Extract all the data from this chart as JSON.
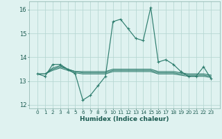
{
  "xlabel": "Humidex (Indice chaleur)",
  "x": [
    0,
    1,
    2,
    3,
    4,
    5,
    6,
    7,
    8,
    9,
    10,
    11,
    12,
    13,
    14,
    15,
    16,
    17,
    18,
    19,
    20,
    21,
    22,
    23
  ],
  "line1": [
    13.3,
    13.2,
    13.7,
    13.7,
    13.5,
    13.3,
    12.2,
    12.4,
    12.8,
    13.2,
    15.5,
    15.6,
    15.2,
    14.8,
    14.7,
    16.1,
    13.8,
    13.9,
    13.7,
    13.4,
    13.2,
    13.2,
    13.6,
    13.1
  ],
  "line2": [
    13.3,
    13.3,
    13.55,
    13.65,
    13.5,
    13.4,
    13.35,
    13.35,
    13.35,
    13.35,
    13.45,
    13.45,
    13.45,
    13.45,
    13.45,
    13.45,
    13.35,
    13.35,
    13.35,
    13.3,
    13.25,
    13.25,
    13.25,
    13.2
  ],
  "line3": [
    13.3,
    13.3,
    13.45,
    13.55,
    13.45,
    13.35,
    13.3,
    13.3,
    13.3,
    13.3,
    13.4,
    13.4,
    13.4,
    13.4,
    13.4,
    13.4,
    13.3,
    13.3,
    13.3,
    13.25,
    13.2,
    13.2,
    13.2,
    13.15
  ],
  "line4": [
    13.3,
    13.3,
    13.5,
    13.6,
    13.5,
    13.4,
    13.4,
    13.4,
    13.4,
    13.4,
    13.5,
    13.5,
    13.5,
    13.5,
    13.5,
    13.5,
    13.4,
    13.4,
    13.4,
    13.35,
    13.3,
    13.3,
    13.3,
    13.25
  ],
  "color": "#2e7d6e",
  "bg_color": "#dff2f0",
  "grid_color": "#b8d8d4",
  "ylim": [
    11.85,
    16.35
  ],
  "yticks": [
    12,
    13,
    14,
    15,
    16
  ],
  "xticks": [
    0,
    1,
    2,
    3,
    4,
    5,
    6,
    7,
    8,
    9,
    10,
    11,
    12,
    13,
    14,
    15,
    16,
    17,
    18,
    19,
    20,
    21,
    22,
    23
  ],
  "xlabel_fontsize": 6.5,
  "ytick_fontsize": 6.0,
  "xtick_fontsize": 5.2
}
